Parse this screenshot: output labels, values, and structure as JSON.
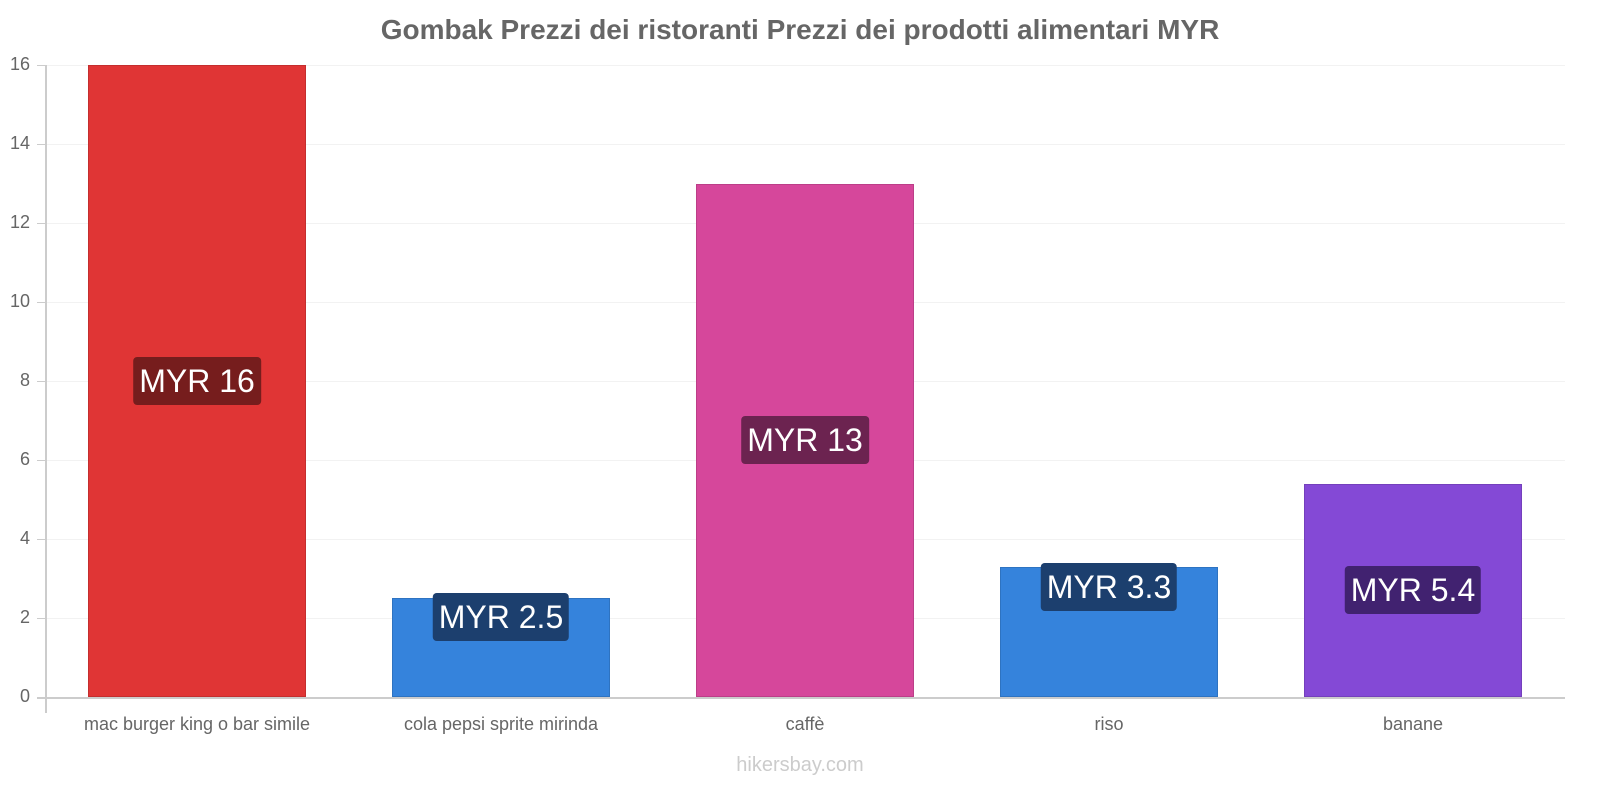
{
  "chart_data": {
    "type": "bar",
    "title": "Gombak Prezzi dei ristoranti Prezzi dei prodotti alimentari MYR",
    "xlabel": "",
    "ylabel": "",
    "ylim": [
      0,
      16
    ],
    "yticks": [
      "0",
      "2",
      "4",
      "6",
      "8",
      "10",
      "12",
      "14",
      "16"
    ],
    "grid": true,
    "legend": "none",
    "categories": [
      "mac burger king o bar simile",
      "cola pepsi sprite mirinda",
      "caffè",
      "riso",
      "banane"
    ],
    "values": [
      16,
      2.5,
      13,
      3.3,
      5.4
    ],
    "data_labels": [
      "MYR 16",
      "MYR 2.5",
      "MYR 13",
      "MYR 3.3",
      "MYR 5.4"
    ],
    "colors": [
      "#e03535",
      "#3583dc",
      "#d6479b",
      "#3583dc",
      "#8449d6"
    ],
    "label_colors": [
      "#761d1d",
      "#1c3f6e",
      "#6c2350",
      "#1c3f6e",
      "#412270"
    ]
  },
  "watermark": "hikersbay.com"
}
